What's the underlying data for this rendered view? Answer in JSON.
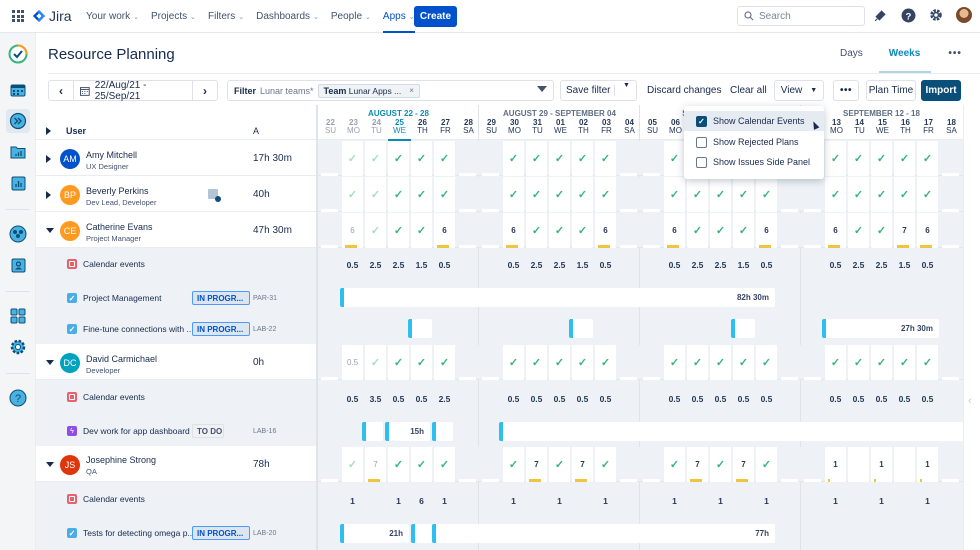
{
  "topnav": {
    "logo": "Jira",
    "items": [
      {
        "label": "Your work",
        "active": false
      },
      {
        "label": "Projects",
        "active": false
      },
      {
        "label": "Filters",
        "active": false
      },
      {
        "label": "Dashboards",
        "active": false
      },
      {
        "label": "People",
        "active": false
      },
      {
        "label": "Apps",
        "active": true
      }
    ],
    "create_label": "Create",
    "search_placeholder": "Search"
  },
  "sidebar": {
    "icons": [
      "resource-planning-logo-icon",
      "calendar-icon",
      "forward-icon",
      "folder-chart-icon",
      "report-chart-icon",
      "team-icon",
      "user-card-icon",
      "apps-grid-icon",
      "settings-icon",
      "help-icon"
    ]
  },
  "page": {
    "title": "Resource Planning",
    "view_tabs": [
      "Days",
      "Weeks"
    ],
    "active_view": "Weeks",
    "more": "•••"
  },
  "toolbar": {
    "date_range": "22/Aug/21 - 25/Sep/21",
    "filter_label": "Filter",
    "filter_value": "Lunar teams*",
    "chip_key": "Team",
    "chip_value": "Lunar Apps ...",
    "chip_close": "×",
    "save_filter": "Save filter",
    "discard": "Discard changes",
    "clear_all": "Clear all",
    "view": "View",
    "more": "•••",
    "plan_time": "Plan Time",
    "import": "Import"
  },
  "view_dropdown": {
    "items": [
      {
        "label": "Show Calendar Events",
        "checked": true
      },
      {
        "label": "Show Rejected Plans",
        "checked": false
      },
      {
        "label": "Show Issues Side Panel",
        "checked": false
      }
    ]
  },
  "grid": {
    "header": {
      "user": "User",
      "a": "A"
    },
    "weeks": [
      {
        "label": "AUGUST 22 - 28",
        "current": true
      },
      {
        "label": "AUGUST 29 - SEPTEMBER 04",
        "current": false
      },
      {
        "label": "SEPTEMBER 05 - 11",
        "current": false
      },
      {
        "label": "SEPTEMBER 12 - 18",
        "current": false
      }
    ],
    "days": [
      {
        "n": "22",
        "d": "SU"
      },
      {
        "n": "23",
        "d": "MO"
      },
      {
        "n": "24",
        "d": "TU"
      },
      {
        "n": "25",
        "d": "WE"
      },
      {
        "n": "26",
        "d": "TH"
      },
      {
        "n": "27",
        "d": "FR"
      },
      {
        "n": "28",
        "d": "SA"
      },
      {
        "n": "29",
        "d": "SU"
      },
      {
        "n": "30",
        "d": "MO"
      },
      {
        "n": "31",
        "d": "TU"
      },
      {
        "n": "01",
        "d": "WE"
      },
      {
        "n": "02",
        "d": "TH"
      },
      {
        "n": "03",
        "d": "FR"
      },
      {
        "n": "04",
        "d": "SA"
      },
      {
        "n": "05",
        "d": "SU"
      },
      {
        "n": "06",
        "d": "MO"
      },
      {
        "n": "07",
        "d": "TU"
      },
      {
        "n": "08",
        "d": "WE"
      },
      {
        "n": "09",
        "d": "TH"
      },
      {
        "n": "10",
        "d": "FR"
      },
      {
        "n": "11",
        "d": "SA"
      },
      {
        "n": "12",
        "d": "SU"
      },
      {
        "n": "13",
        "d": "MO"
      },
      {
        "n": "14",
        "d": "TU"
      },
      {
        "n": "15",
        "d": "WE"
      },
      {
        "n": "16",
        "d": "TH"
      },
      {
        "n": "17",
        "d": "FR"
      },
      {
        "n": "18",
        "d": "SA"
      }
    ],
    "users": [
      {
        "initials": "AM",
        "name": "Amy Mitchell",
        "role": "UX Designer",
        "hours": "17h 30m",
        "color": "#0052cc",
        "expanded": false
      },
      {
        "initials": "BP",
        "name": "Beverly Perkins",
        "role": "Dev Lead, Developer",
        "hours": "40h",
        "color": "#ff991f",
        "expanded": false
      },
      {
        "initials": "CE",
        "name": "Catherine Evans",
        "role": "Project Manager",
        "hours": "47h 30m",
        "color": "#ff991f",
        "expanded": true
      },
      {
        "initials": "DC",
        "name": "David Carmichael",
        "role": "Developer",
        "hours": "0h",
        "color": "#00a3bf",
        "expanded": true
      },
      {
        "initials": "JS",
        "name": "Josephine Strong",
        "role": "QA",
        "hours": "78h",
        "color": "#de350b",
        "expanded": true
      }
    ],
    "subrows": {
      "ce_calendar": "Calendar events",
      "ce_task1": {
        "label": "Project Management",
        "status": "IN PROGR...",
        "key": "PAR-31"
      },
      "ce_task2": {
        "label": "Fine-tune connections with ...",
        "status": "IN PROGR...",
        "key": "LAB-22"
      },
      "dc_calendar": "Calendar events",
      "dc_task1": {
        "label": "Dev work for app dashboard",
        "status": "TO DO",
        "key": "LAB-16"
      },
      "js_calendar": "Calendar events",
      "js_task1": {
        "label": "Tests for detecting omega p...",
        "status": "IN PROGR...",
        "key": "LAB-20"
      }
    },
    "cells": {
      "ce": [
        "6",
        "✓",
        "✓",
        "✓",
        "6",
        "6",
        "✓",
        "✓",
        "✓",
        "6",
        "6",
        "✓",
        "✓",
        "✓",
        "6",
        "6",
        "✓",
        "✓",
        "7",
        "6"
      ],
      "dc": [
        "0.5",
        "✓",
        "✓",
        "✓",
        "✓",
        "✓",
        "✓",
        "✓",
        "✓",
        "✓",
        "✓",
        "✓",
        "✓",
        "✓",
        "✓",
        "✓",
        "✓",
        "✓",
        "✓",
        "✓"
      ],
      "js": [
        "✓",
        "7",
        "✓",
        "✓",
        "✓",
        "✓",
        "7",
        "✓",
        "7",
        "✓",
        "✓",
        "7",
        "✓",
        "7",
        "✓",
        "1",
        "",
        "1",
        "",
        "1"
      ]
    },
    "sums": {
      "ce": [
        "0.5",
        "2.5",
        "2.5",
        "1.5",
        "0.5",
        "0.5",
        "2.5",
        "2.5",
        "1.5",
        "0.5",
        "0.5",
        "2.5",
        "2.5",
        "1.5",
        "0.5",
        "0.5",
        "2.5",
        "2.5",
        "1.5",
        "0.5"
      ],
      "dc": [
        "0.5",
        "3.5",
        "0.5",
        "0.5",
        "2.5",
        "0.5",
        "0.5",
        "0.5",
        "0.5",
        "0.5",
        "0.5",
        "0.5",
        "0.5",
        "0.5",
        "0.5",
        "0.5",
        "0.5",
        "0.5",
        "0.5",
        "0.5"
      ],
      "js": [
        "1",
        "",
        "1",
        "6",
        "1",
        "1",
        "",
        "1",
        "",
        "1",
        "1",
        "",
        "1",
        "",
        "1",
        "1",
        "",
        "1",
        "",
        "1"
      ]
    },
    "bars": {
      "pm": "82h 30m",
      "fine_tune": "27h 30m",
      "dev_work": "15h",
      "tests_a": "21h",
      "tests_b": "77h"
    }
  }
}
